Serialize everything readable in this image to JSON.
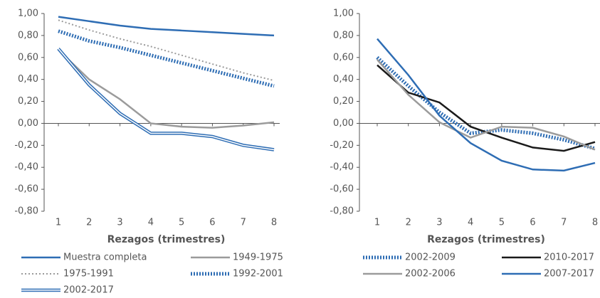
{
  "chart_data": [
    {
      "type": "line",
      "xlabel": "Rezagos (trimestres)",
      "x": [
        1,
        2,
        3,
        4,
        5,
        6,
        7,
        8
      ],
      "xlim": [
        1,
        8
      ],
      "xticks": [
        1,
        2,
        3,
        4,
        5,
        6,
        7,
        8
      ],
      "ylim": [
        -0.8,
        1.0
      ],
      "yticks": [
        {
          "value": -0.8,
          "label": "-0,80"
        },
        {
          "value": -0.6,
          "label": "-0,60"
        },
        {
          "value": -0.4,
          "label": "-0,40"
        },
        {
          "value": -0.2,
          "label": "-0,20"
        },
        {
          "value": 0,
          "label": "0,00"
        },
        {
          "value": 0.2,
          "label": "0,20"
        },
        {
          "value": 0.4,
          "label": "0,40"
        },
        {
          "value": 0.6,
          "label": "0,60"
        },
        {
          "value": 0.8,
          "label": "0,80"
        },
        {
          "value": 1.0,
          "label": "1,00"
        }
      ],
      "series": [
        {
          "name": "Muestra completa",
          "color": "#2e6db4",
          "style": "solid",
          "values": [
            0.97,
            0.93,
            0.89,
            0.86,
            0.845,
            0.83,
            0.815,
            0.8
          ]
        },
        {
          "name": "1949-1975",
          "color": "#9b9b9b",
          "style": "solid",
          "values": [
            0.67,
            0.4,
            0.22,
            0.0,
            -0.03,
            -0.04,
            -0.02,
            0.01
          ]
        },
        {
          "name": "1975-1991",
          "color": "#9b9b9b",
          "style": "dotted",
          "values": [
            0.94,
            0.85,
            0.77,
            0.7,
            0.62,
            0.54,
            0.46,
            0.39
          ]
        },
        {
          "name": "1992-2001",
          "color": "#2e6db4",
          "style": "zigzag",
          "values": [
            0.84,
            0.75,
            0.69,
            0.62,
            0.55,
            0.48,
            0.41,
            0.34
          ]
        },
        {
          "name": "2002-2017",
          "color": "#2e6db4",
          "style": "double",
          "values": [
            0.68,
            0.35,
            0.09,
            -0.09,
            -0.09,
            -0.12,
            -0.2,
            -0.24
          ]
        }
      ]
    },
    {
      "type": "line",
      "xlabel": "Rezagos (trimestres)",
      "x": [
        1,
        2,
        3,
        4,
        5,
        6,
        7,
        8
      ],
      "xlim": [
        1,
        8
      ],
      "xticks": [
        1,
        2,
        3,
        4,
        5,
        6,
        7,
        8
      ],
      "ylim": [
        -0.8,
        1.0
      ],
      "yticks": [
        {
          "value": -0.8,
          "label": "-0,80"
        },
        {
          "value": -0.6,
          "label": "-0,60"
        },
        {
          "value": -0.4,
          "label": "-0,40"
        },
        {
          "value": -0.2,
          "label": "-0,20"
        },
        {
          "value": 0,
          "label": "0,00"
        },
        {
          "value": 0.2,
          "label": "0,20"
        },
        {
          "value": 0.4,
          "label": "0,40"
        },
        {
          "value": 0.6,
          "label": "0,60"
        },
        {
          "value": 0.8,
          "label": "0,80"
        },
        {
          "value": 1.0,
          "label": "1,00"
        }
      ],
      "series": [
        {
          "name": "2002-2009",
          "color": "#2e6db4",
          "style": "zigzag",
          "values": [
            0.6,
            0.34,
            0.1,
            -0.09,
            -0.06,
            -0.09,
            -0.15,
            -0.23
          ]
        },
        {
          "name": "2010-2017",
          "color": "#1a1a1a",
          "style": "solid",
          "values": [
            0.53,
            0.28,
            0.19,
            -0.03,
            -0.13,
            -0.22,
            -0.25,
            -0.17
          ]
        },
        {
          "name": "2002-2006",
          "color": "#9b9b9b",
          "style": "solid",
          "values": [
            0.58,
            0.26,
            0.01,
            -0.13,
            -0.03,
            -0.04,
            -0.12,
            -0.24
          ]
        },
        {
          "name": "2007-2017",
          "color": "#2e6db4",
          "style": "solid",
          "values": [
            0.77,
            0.44,
            0.07,
            -0.18,
            -0.34,
            -0.42,
            -0.43,
            -0.36
          ]
        }
      ]
    }
  ]
}
